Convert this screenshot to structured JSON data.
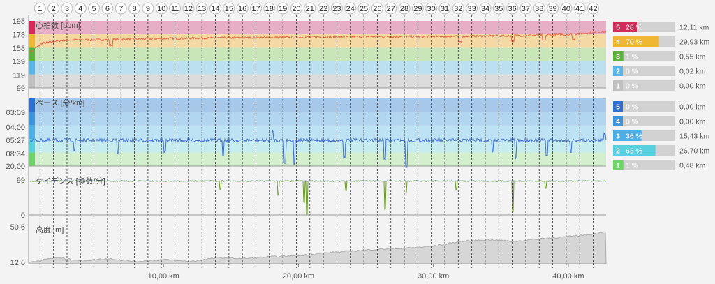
{
  "markers": [
    "1",
    "2",
    "3",
    "4",
    "5",
    "6",
    "7",
    "8",
    "9",
    "10",
    "11",
    "12",
    "13",
    "14",
    "15",
    "16",
    "17",
    "18",
    "19",
    "20",
    "21",
    "22",
    "23",
    "24",
    "25",
    "26",
    "27",
    "28",
    "29",
    "30",
    "31",
    "32",
    "33",
    "34",
    "35",
    "36",
    "37",
    "38",
    "39",
    "40",
    "41",
    "42"
  ],
  "x_axis": {
    "ticks": [
      "10,00 km",
      "20,00 km",
      "30,00 km",
      "40,00 km"
    ],
    "range_km": [
      0,
      42.8
    ]
  },
  "heart": {
    "title": "心拍数 [bpm]",
    "ticks": [
      "198",
      "178",
      "158",
      "139",
      "119",
      "99"
    ],
    "zones": [
      {
        "id": "5",
        "pct": "28 %",
        "value": 28,
        "dist": "12,11 km",
        "color": "#d42c5a",
        "band": "#e6afc6"
      },
      {
        "id": "4",
        "pct": "70 %",
        "value": 70,
        "dist": "29,93 km",
        "color": "#f0b735",
        "band": "#f5d9a4"
      },
      {
        "id": "3",
        "pct": "1 %",
        "value": 1,
        "dist": "0,55 km",
        "color": "#5db43a",
        "band": "#c8e6b7"
      },
      {
        "id": "2",
        "pct": "0 %",
        "value": 0,
        "dist": "0,02 km",
        "color": "#5ab5e8",
        "band": "#bde0f1"
      },
      {
        "id": "1",
        "pct": "0 %",
        "value": 0,
        "dist": "0,00 km",
        "color": "#c0c0c0",
        "band": "#dcdcdc"
      }
    ]
  },
  "pace": {
    "title": "ペース [分/km]",
    "ticks": [
      "03:09",
      "04:00",
      "05:27",
      "08:34",
      "20:00"
    ],
    "zones": [
      {
        "id": "5",
        "pct": "0 %",
        "value": 0,
        "dist": "0,00 km",
        "color": "#2f6fce",
        "band": "#a8c8ea"
      },
      {
        "id": "4",
        "pct": "0 %",
        "value": 0,
        "dist": "0,00 km",
        "color": "#3c94dc",
        "band": "#b2d5f0"
      },
      {
        "id": "3",
        "pct": "36 %",
        "value": 36,
        "dist": "15,43 km",
        "color": "#4cb0e6",
        "band": "#bce2f4"
      },
      {
        "id": "2",
        "pct": "63 %",
        "value": 63,
        "dist": "26,70 km",
        "color": "#59d0de",
        "band": "#c7ecef"
      },
      {
        "id": "1",
        "pct": "1 %",
        "value": 1,
        "dist": "0,48 km",
        "color": "#6ed46a",
        "band": "#d3efcd"
      }
    ]
  },
  "cadence": {
    "title": "ケイデンス [歩数/分]",
    "ticks": [
      "99",
      "0"
    ]
  },
  "altitude": {
    "title": "高度 [m]",
    "ticks": [
      "50.6",
      "12.6"
    ]
  },
  "chart_data": [
    {
      "type": "line",
      "title": "心拍数 [bpm]",
      "xlabel": "km",
      "ylim": [
        99,
        198
      ],
      "x": [
        0,
        1,
        2,
        3,
        5,
        8,
        10,
        15,
        20,
        25,
        30,
        35,
        40,
        42.8
      ],
      "series": [
        {
          "values": [
            150,
            165,
            168,
            170,
            170,
            171,
            172,
            173,
            174,
            175,
            175,
            176,
            178,
            182
          ]
        }
      ]
    },
    {
      "type": "line",
      "title": "ペース [分/km]",
      "xlabel": "km",
      "series": [
        {
          "values": [
            "05:27",
            "05:27",
            "05:27",
            "05:27"
          ]
        }
      ]
    },
    {
      "type": "line",
      "title": "ケイデンス [歩数/分]",
      "xlabel": "km",
      "ylim": [
        0,
        99
      ],
      "series": [
        {
          "values": [
            96,
            96,
            96,
            96
          ]
        }
      ]
    },
    {
      "type": "area",
      "title": "高度 [m]",
      "xlabel": "km",
      "ylim": [
        12.6,
        50.6
      ],
      "x": [
        0,
        2,
        4,
        6,
        8,
        10,
        12,
        14,
        16,
        18,
        20,
        22,
        24,
        26,
        28,
        30,
        32,
        34,
        36,
        38,
        40,
        42,
        42.8
      ],
      "series": [
        {
          "values": [
            14,
            19,
            16,
            18,
            15,
            17,
            15,
            19,
            18,
            20,
            21,
            24,
            26,
            28,
            29,
            31,
            36,
            38,
            36,
            39,
            41,
            44,
            47
          ]
        }
      ]
    }
  ]
}
